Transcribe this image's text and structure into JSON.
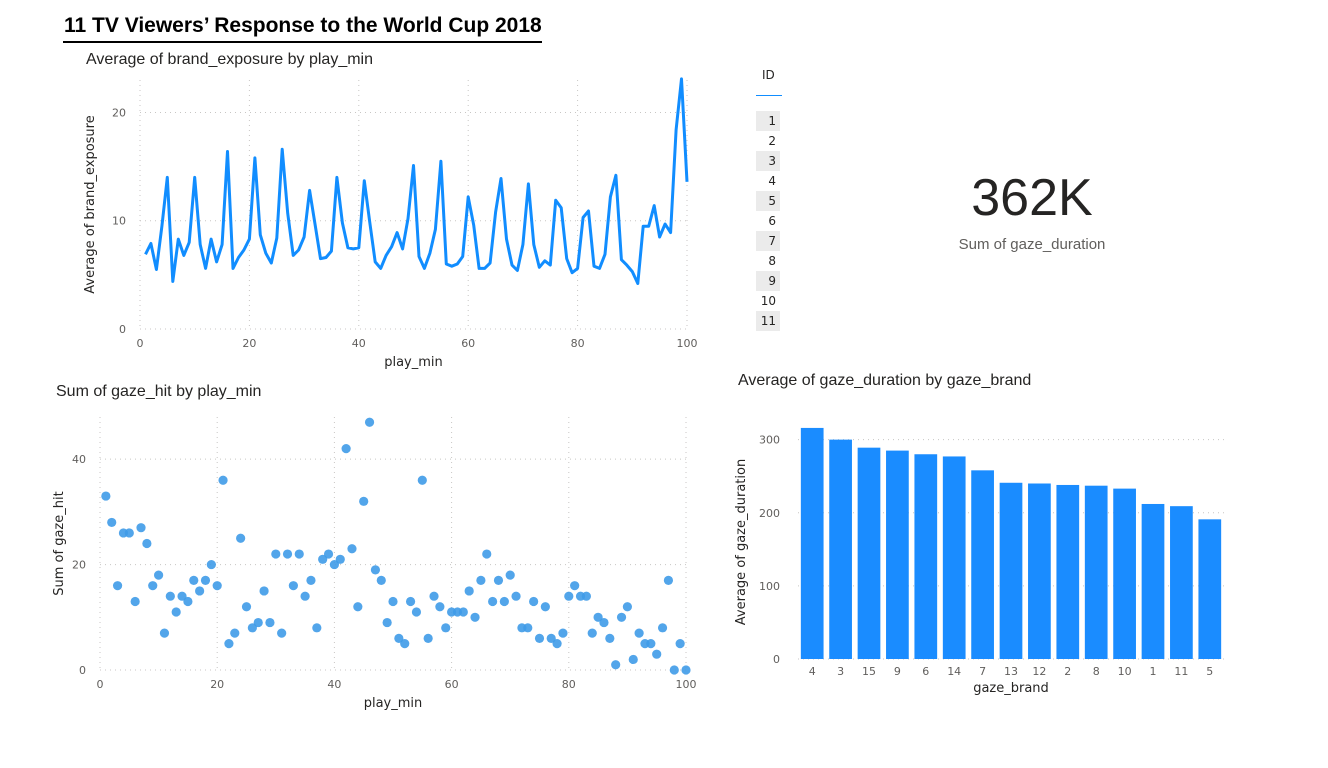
{
  "report_title": "11 TV Viewers’ Response to the World Cup 2018",
  "colors": {
    "accent": "#118dff",
    "bar": "#1a8cff",
    "scatter": "#3f9be8",
    "grid": "#c8c6c4"
  },
  "slicer": {
    "header": "ID",
    "items": [
      "1",
      "2",
      "3",
      "4",
      "5",
      "6",
      "7",
      "8",
      "9",
      "10",
      "11"
    ]
  },
  "card": {
    "value": "362K",
    "label": "Sum of gaze_duration"
  },
  "chart_data": [
    {
      "type": "line",
      "title": "Average of brand_exposure by play_min",
      "xlabel": "play_min",
      "ylabel": "Average of brand_exposure",
      "xlim": [
        0,
        100
      ],
      "ylim": [
        0,
        23
      ],
      "xticks": [
        0,
        20,
        40,
        60,
        80,
        100
      ],
      "yticks": [
        0,
        10,
        20
      ],
      "grid": true,
      "series": [
        {
          "x": [
            1,
            2,
            3,
            4,
            5,
            6,
            7,
            8,
            9,
            10,
            11,
            12,
            13,
            14,
            15,
            16,
            17,
            18,
            19,
            20,
            21,
            22,
            23,
            24,
            25,
            26,
            27,
            28,
            29,
            30,
            31,
            32,
            33,
            34,
            35,
            36,
            37,
            38,
            39,
            40,
            41,
            42,
            43,
            44,
            45,
            46,
            47,
            48,
            49,
            50,
            51,
            52,
            53,
            54,
            55,
            56,
            57,
            58,
            59,
            60,
            61,
            62,
            63,
            64,
            65,
            66,
            67,
            68,
            69,
            70,
            71,
            72,
            73,
            74,
            75,
            76,
            77,
            78,
            79,
            80,
            81,
            82,
            83,
            84,
            85,
            86,
            87,
            88,
            89,
            90,
            91,
            92,
            93,
            94,
            95,
            96,
            97,
            98,
            99,
            100
          ],
          "values": [
            6.9,
            7.9,
            5.5,
            9.5,
            14.0,
            4.4,
            8.3,
            6.8,
            8.0,
            14.0,
            7.8,
            5.6,
            8.3,
            6.2,
            7.8,
            16.4,
            5.6,
            6.6,
            7.3,
            8.3,
            15.8,
            8.7,
            7.0,
            6.1,
            8.4,
            16.6,
            10.7,
            6.8,
            7.3,
            8.5,
            12.8,
            9.7,
            6.5,
            6.6,
            7.2,
            14.0,
            9.8,
            7.5,
            7.4,
            7.5,
            13.7,
            9.9,
            6.2,
            5.6,
            6.8,
            7.6,
            8.9,
            7.4,
            10.2,
            15.1,
            6.7,
            5.6,
            7.0,
            9.2,
            15.5,
            6.0,
            5.8,
            6.0,
            6.7,
            12.2,
            9.6,
            5.6,
            5.6,
            6.1,
            10.8,
            13.9,
            8.3,
            5.9,
            5.4,
            7.8,
            13.4,
            7.8,
            5.7,
            6.3,
            5.9,
            11.9,
            11.2,
            6.5,
            5.2,
            5.6,
            10.3,
            10.9,
            5.8,
            5.6,
            6.9,
            12.2,
            14.2,
            6.4,
            5.9,
            5.3,
            4.2,
            9.5,
            9.5,
            11.4,
            8.5,
            9.7,
            8.9,
            18.4,
            23.1,
            13.6
          ]
        }
      ]
    },
    {
      "type": "scatter",
      "title": "Sum of gaze_hit by play_min",
      "xlabel": "play_min",
      "ylabel": "Sum of gaze_hit",
      "xlim": [
        0,
        100
      ],
      "ylim": [
        0,
        48
      ],
      "xticks": [
        0,
        20,
        40,
        60,
        80,
        100
      ],
      "yticks": [
        0,
        20,
        40
      ],
      "grid": true,
      "series": [
        {
          "x": [
            1,
            2,
            3,
            4,
            5,
            6,
            7,
            8,
            9,
            10,
            11,
            12,
            13,
            14,
            15,
            16,
            17,
            18,
            19,
            20,
            21,
            22,
            23,
            24,
            25,
            26,
            27,
            28,
            29,
            30,
            31,
            32,
            33,
            34,
            35,
            36,
            37,
            38,
            39,
            40,
            41,
            42,
            43,
            44,
            45,
            46,
            47,
            48,
            49,
            50,
            51,
            52,
            53,
            54,
            55,
            56,
            57,
            58,
            59,
            60,
            61,
            62,
            63,
            64,
            65,
            66,
            67,
            68,
            69,
            70,
            71,
            72,
            73,
            74,
            75,
            76,
            77,
            78,
            79,
            80,
            81,
            82,
            83,
            84,
            85,
            86,
            87,
            88,
            89,
            90,
            91,
            92,
            93,
            94,
            95,
            96,
            97,
            98,
            99,
            100
          ],
          "values": [
            33,
            28,
            16,
            26,
            26,
            13,
            27,
            24,
            16,
            18,
            7,
            14,
            11,
            14,
            13,
            17,
            15,
            17,
            20,
            16,
            36,
            5,
            7,
            25,
            12,
            8,
            9,
            15,
            9,
            22,
            7,
            22,
            16,
            22,
            14,
            17,
            8,
            21,
            22,
            20,
            21,
            42,
            23,
            12,
            32,
            47,
            19,
            17,
            9,
            13,
            6,
            5,
            13,
            11,
            36,
            6,
            14,
            12,
            8,
            11,
            11,
            11,
            15,
            10,
            17,
            22,
            13,
            17,
            13,
            18,
            14,
            8,
            8,
            13,
            6,
            12,
            6,
            5,
            7,
            14,
            16,
            14,
            14,
            7,
            10,
            9,
            6,
            1,
            10,
            12,
            2,
            7,
            5,
            5,
            3,
            8,
            17,
            0,
            5,
            0
          ]
        }
      ]
    },
    {
      "type": "bar",
      "title": "Average of gaze_duration by gaze_brand",
      "xlabel": "gaze_brand",
      "ylabel": "Average of gaze_duration",
      "ylim": [
        0,
        320
      ],
      "yticks": [
        0,
        100,
        200,
        300
      ],
      "grid": true,
      "categories": [
        "4",
        "3",
        "15",
        "9",
        "6",
        "14",
        "7",
        "13",
        "12",
        "2",
        "8",
        "10",
        "1",
        "11",
        "5"
      ],
      "values": [
        316,
        300,
        289,
        285,
        280,
        277,
        258,
        241,
        240,
        238,
        237,
        233,
        212,
        209,
        191
      ]
    }
  ]
}
